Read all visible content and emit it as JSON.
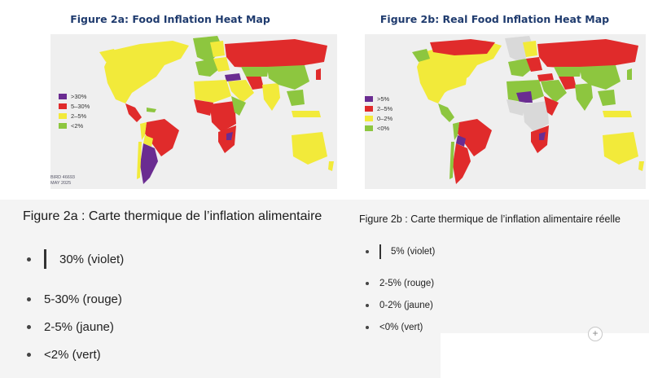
{
  "figure_a": {
    "title": "Figure 2a: Food Inflation Heat Map",
    "legend": [
      {
        "label": ">30%",
        "color": "#6a2c91"
      },
      {
        "label": "5–30%",
        "color": "#e02b2b"
      },
      {
        "label": "2–5%",
        "color": "#f2ea3a"
      },
      {
        "label": "<2%",
        "color": "#8dc63f"
      }
    ],
    "source_line1": "BIRD 46693",
    "source_line2": "MAY 2025"
  },
  "figure_b": {
    "title": "Figure 2b: Real Food Inflation Heat Map",
    "legend": [
      {
        "label": ">5%",
        "color": "#6a2c91"
      },
      {
        "label": "2–5%",
        "color": "#e02b2b"
      },
      {
        "label": "0–2%",
        "color": "#f2ea3a"
      },
      {
        "label": "<0%",
        "color": "#8dc63f"
      }
    ]
  },
  "caption_a": {
    "title": "Figure 2a : Carte thermique de l’inflation alimentaire",
    "items": [
      "30% (violet)",
      "5-30% (rouge)",
      "2-5% (jaune)",
      "<2% (vert)"
    ]
  },
  "caption_b": {
    "title": "Figure 2b : Carte thermique de l’inflation alimentaire réelle",
    "items": [
      "5% (violet)",
      "2-5% (rouge)",
      "0-2% (jaune)",
      "<0% (vert)"
    ]
  },
  "colors": {
    "violet": "#6a2c91",
    "red": "#e02b2b",
    "yellow": "#f2ea3a",
    "green": "#8dc63f",
    "ocean": "#ffffff",
    "nodata": "#d9d9d9"
  },
  "add_icon": "plus-icon"
}
